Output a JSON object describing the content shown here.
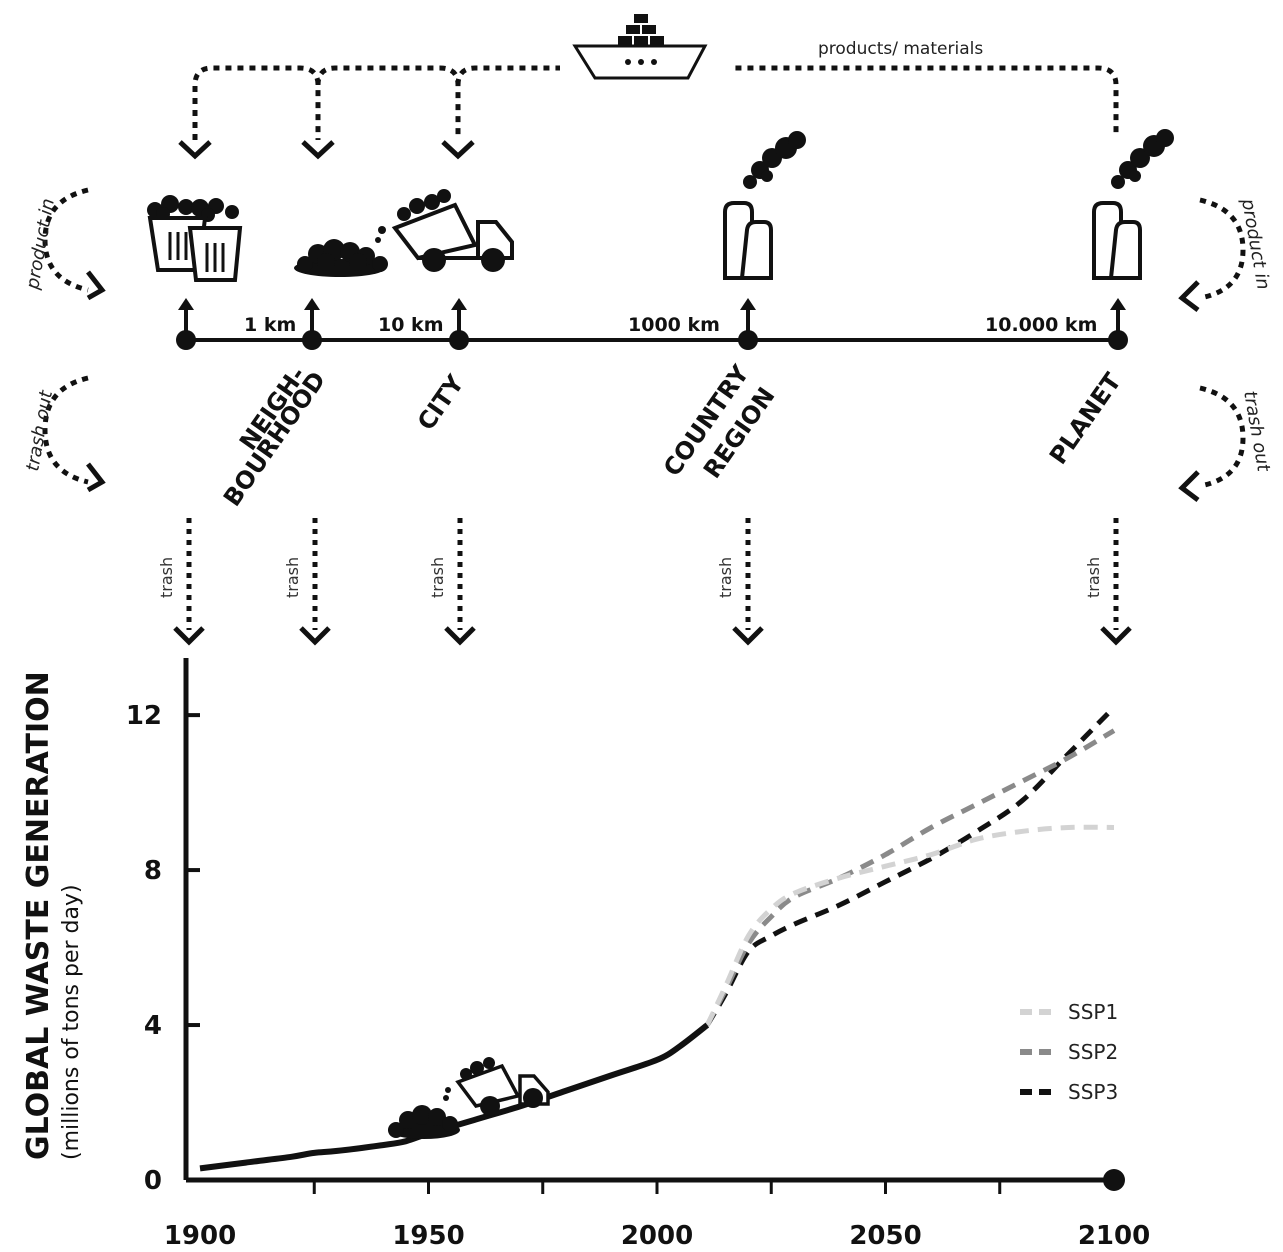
{
  "diagram": {
    "materials_label": "products/ materials",
    "product_in": "product in",
    "trash_out": "trash out",
    "trash": "trash",
    "distances": [
      "1 km",
      "10 km",
      "1000 km",
      "10.000 km"
    ],
    "scales": [
      "NEIGH-",
      "BOURHOOD",
      "CITY",
      "COUNTRY",
      "REGION",
      "PLANET"
    ]
  },
  "chart_data": {
    "type": "line",
    "ylabel": "GLOBAL WASTE GENERATION",
    "ylabel_sub": "(millions of tons per day)",
    "xlim": [
      1900,
      2100
    ],
    "ylim": [
      0,
      13.5
    ],
    "x_ticks": [
      1900,
      1950,
      2000,
      2050,
      2100
    ],
    "y_ticks": [
      0,
      4,
      8,
      12
    ],
    "x_tick_labels": [
      "1900",
      "1950",
      "2000",
      "2050",
      "2100"
    ],
    "y_tick_labels": [
      "0",
      "4",
      "8",
      "12"
    ],
    "legend_position": "right",
    "historical": {
      "x": [
        1900,
        1910,
        1920,
        1925,
        1930,
        1940,
        1945,
        1950,
        1960,
        1970,
        1980,
        1990,
        2000,
        2005,
        2011
      ],
      "y": [
        0.3,
        0.45,
        0.6,
        0.7,
        0.75,
        0.9,
        1.0,
        1.2,
        1.55,
        1.9,
        2.3,
        2.7,
        3.1,
        3.45,
        4.0
      ]
    },
    "series": [
      {
        "name": "SSP1",
        "color": "#d3d3d3",
        "x": [
          2011,
          2015,
          2020,
          2025,
          2030,
          2040,
          2050,
          2060,
          2070,
          2080,
          2090,
          2100
        ],
        "y": [
          4.0,
          5.0,
          6.3,
          7.0,
          7.4,
          7.8,
          8.1,
          8.4,
          8.8,
          9.0,
          9.1,
          9.1
        ]
      },
      {
        "name": "SSP2",
        "color": "#8a8a8a",
        "x": [
          2011,
          2015,
          2020,
          2025,
          2030,
          2040,
          2050,
          2060,
          2070,
          2080,
          2090,
          2100
        ],
        "y": [
          4.0,
          4.9,
          6.1,
          6.8,
          7.3,
          7.8,
          8.4,
          9.1,
          9.7,
          10.3,
          10.9,
          11.6
        ]
      },
      {
        "name": "SSP3",
        "color": "#111111",
        "x": [
          2011,
          2015,
          2020,
          2025,
          2030,
          2040,
          2050,
          2060,
          2070,
          2080,
          2090,
          2100
        ],
        "y": [
          4.0,
          4.8,
          5.9,
          6.3,
          6.6,
          7.1,
          7.7,
          8.3,
          9.0,
          9.8,
          11.0,
          12.2
        ]
      }
    ]
  }
}
